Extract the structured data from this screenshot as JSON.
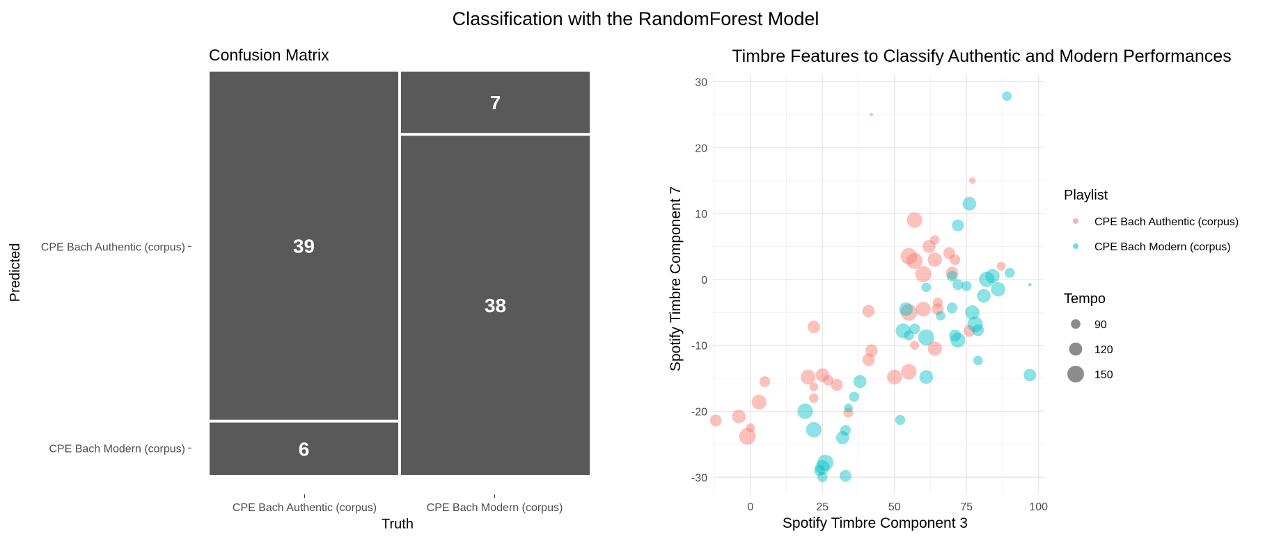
{
  "title": "Classification with the RandomForest Model",
  "chart_data": [
    {
      "type": "mosaic",
      "title": "Confusion Matrix",
      "xlabel": "Truth",
      "ylabel": "Predicted",
      "x_categories": [
        "CPE Bach Authentic (corpus)",
        "CPE Bach Modern (corpus)"
      ],
      "y_categories": [
        "CPE Bach Authentic (corpus)",
        "CPE Bach Modern (corpus)"
      ],
      "cells": [
        {
          "truth": "CPE Bach Authentic (corpus)",
          "predicted": "CPE Bach Authentic (corpus)",
          "count": 39
        },
        {
          "truth": "CPE Bach Authentic (corpus)",
          "predicted": "CPE Bach Modern (corpus)",
          "count": 6
        },
        {
          "truth": "CPE Bach Modern (corpus)",
          "predicted": "CPE Bach Authentic (corpus)",
          "count": 7
        },
        {
          "truth": "CPE Bach Modern (corpus)",
          "predicted": "CPE Bach Modern (corpus)",
          "count": 38
        }
      ],
      "fill_color": "#595959",
      "label_color": "#ffffff"
    },
    {
      "type": "scatter",
      "title": "Timbre Features to Classify Authentic and Modern Performances",
      "xlabel": "Spotify Timbre Component 3",
      "ylabel": "Spotify Timbre Component 7",
      "xlim": [
        -13,
        102
      ],
      "ylim": [
        -32.5,
        31
      ],
      "xticks": [
        0,
        25,
        50,
        75,
        100
      ],
      "yticks": [
        -30,
        -20,
        -10,
        0,
        10,
        20,
        30
      ],
      "grid": true,
      "legend_position": "right",
      "color_legend_title": "Playlist",
      "size_legend_title": "Tempo",
      "size_legend": [
        90,
        120,
        150
      ],
      "series": [
        {
          "name": "CPE Bach Authentic (corpus)",
          "color": "#F8766D",
          "points": [
            {
              "x": 42,
              "y": 25,
              "tempo": 40
            },
            {
              "x": 77,
              "y": 15,
              "tempo": 65
            },
            {
              "x": 57,
              "y": 9,
              "tempo": 140
            },
            {
              "x": 64,
              "y": 6,
              "tempo": 90
            },
            {
              "x": 62,
              "y": 5,
              "tempo": 120
            },
            {
              "x": 69,
              "y": 4,
              "tempo": 110
            },
            {
              "x": 55,
              "y": 3.5,
              "tempo": 150
            },
            {
              "x": 64,
              "y": 3,
              "tempo": 130
            },
            {
              "x": 71,
              "y": 3,
              "tempo": 100
            },
            {
              "x": 87,
              "y": 2,
              "tempo": 85
            },
            {
              "x": 57,
              "y": 2.8,
              "tempo": 145
            },
            {
              "x": 60,
              "y": 0.8,
              "tempo": 145
            },
            {
              "x": 70,
              "y": 1,
              "tempo": 115
            },
            {
              "x": 41,
              "y": -4.8,
              "tempo": 115
            },
            {
              "x": 60,
              "y": -4.5,
              "tempo": 135
            },
            {
              "x": 65,
              "y": -4.5,
              "tempo": 110
            },
            {
              "x": 55,
              "y": -5,
              "tempo": 150
            },
            {
              "x": 65,
              "y": -3.5,
              "tempo": 95
            },
            {
              "x": 76,
              "y": -7.8,
              "tempo": 110
            },
            {
              "x": 22,
              "y": -7.2,
              "tempo": 115
            },
            {
              "x": 42,
              "y": -10.8,
              "tempo": 115
            },
            {
              "x": 41,
              "y": -12.2,
              "tempo": 115
            },
            {
              "x": 57,
              "y": -10,
              "tempo": 85
            },
            {
              "x": 64,
              "y": -10.5,
              "tempo": 130
            },
            {
              "x": 55,
              "y": -14,
              "tempo": 140
            },
            {
              "x": 50,
              "y": -14.8,
              "tempo": 135
            },
            {
              "x": 20,
              "y": -14.8,
              "tempo": 135
            },
            {
              "x": 25,
              "y": -14.5,
              "tempo": 125
            },
            {
              "x": 27,
              "y": -15.3,
              "tempo": 100
            },
            {
              "x": 30,
              "y": -16,
              "tempo": 110
            },
            {
              "x": 5,
              "y": -15.5,
              "tempo": 100
            },
            {
              "x": 22,
              "y": -16.3,
              "tempo": 85
            },
            {
              "x": 22,
              "y": -18,
              "tempo": 90
            },
            {
              "x": 3,
              "y": -18.6,
              "tempo": 135
            },
            {
              "x": 34,
              "y": -20.2,
              "tempo": 95
            },
            {
              "x": -4,
              "y": -20.8,
              "tempo": 125
            },
            {
              "x": -12,
              "y": -21.4,
              "tempo": 110
            },
            {
              "x": 0,
              "y": -22.5,
              "tempo": 85
            },
            {
              "x": -1,
              "y": -23.8,
              "tempo": 150
            }
          ]
        },
        {
          "name": "CPE Bach Modern (corpus)",
          "color": "#00BFC4",
          "points": [
            {
              "x": 89,
              "y": 27.8,
              "tempo": 90
            },
            {
              "x": 76,
              "y": 11.5,
              "tempo": 125
            },
            {
              "x": 72,
              "y": 8.2,
              "tempo": 110
            },
            {
              "x": 84,
              "y": 0.5,
              "tempo": 130
            },
            {
              "x": 90,
              "y": 1,
              "tempo": 95
            },
            {
              "x": 82,
              "y": 0,
              "tempo": 140
            },
            {
              "x": 86,
              "y": -1.5,
              "tempo": 130
            },
            {
              "x": 72,
              "y": -0.8,
              "tempo": 100
            },
            {
              "x": 75,
              "y": -1,
              "tempo": 95
            },
            {
              "x": 70,
              "y": 0.5,
              "tempo": 100
            },
            {
              "x": 61,
              "y": -1.2,
              "tempo": 90
            },
            {
              "x": 81,
              "y": -2.5,
              "tempo": 125
            },
            {
              "x": 97,
              "y": -0.8,
              "tempo": 40
            },
            {
              "x": 54,
              "y": -4.5,
              "tempo": 125
            },
            {
              "x": 70,
              "y": -4.3,
              "tempo": 100
            },
            {
              "x": 66,
              "y": -5.5,
              "tempo": 90
            },
            {
              "x": 77,
              "y": -5,
              "tempo": 130
            },
            {
              "x": 78,
              "y": -6.8,
              "tempo": 140
            },
            {
              "x": 79,
              "y": -7.7,
              "tempo": 110
            },
            {
              "x": 53,
              "y": -7.8,
              "tempo": 135
            },
            {
              "x": 57,
              "y": -7.5,
              "tempo": 100
            },
            {
              "x": 55,
              "y": -8.5,
              "tempo": 95
            },
            {
              "x": 61,
              "y": -8.8,
              "tempo": 145
            },
            {
              "x": 71,
              "y": -8.5,
              "tempo": 110
            },
            {
              "x": 72,
              "y": -9.2,
              "tempo": 135
            },
            {
              "x": 79,
              "y": -12.3,
              "tempo": 90
            },
            {
              "x": 38,
              "y": -15.5,
              "tempo": 120
            },
            {
              "x": 61,
              "y": -14.8,
              "tempo": 125
            },
            {
              "x": 97,
              "y": -14.5,
              "tempo": 115
            },
            {
              "x": 36,
              "y": -17.8,
              "tempo": 95
            },
            {
              "x": 34,
              "y": -19.5,
              "tempo": 85
            },
            {
              "x": 19,
              "y": -20,
              "tempo": 140
            },
            {
              "x": 52,
              "y": -21.3,
              "tempo": 95
            },
            {
              "x": 22,
              "y": -22.8,
              "tempo": 140
            },
            {
              "x": 33,
              "y": -22.9,
              "tempo": 100
            },
            {
              "x": 32,
              "y": -24,
              "tempo": 120
            },
            {
              "x": 26,
              "y": -27.8,
              "tempo": 145
            },
            {
              "x": 25,
              "y": -28.5,
              "tempo": 130
            },
            {
              "x": 24,
              "y": -29,
              "tempo": 100
            },
            {
              "x": 25,
              "y": -30,
              "tempo": 95
            },
            {
              "x": 33,
              "y": -29.8,
              "tempo": 110
            }
          ]
        }
      ]
    }
  ]
}
